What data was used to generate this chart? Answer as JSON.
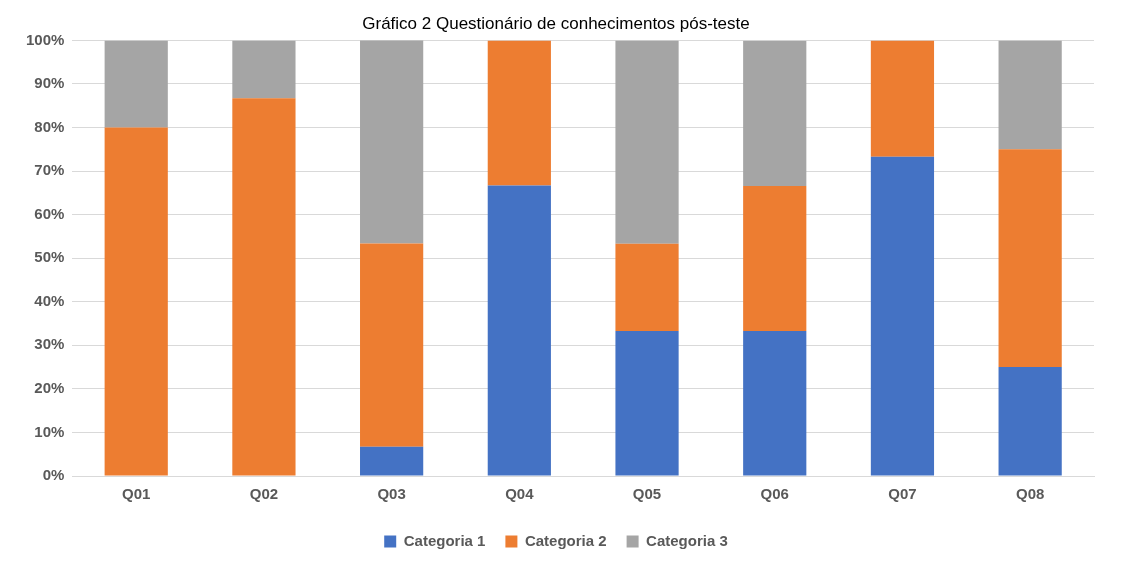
{
  "chart_data": {
    "type": "bar",
    "stacked": true,
    "title": "Gráfico 2 Questionário de conhecimentos pós-teste",
    "categories": [
      "Q01",
      "Q02",
      "Q03",
      "Q04",
      "Q05",
      "Q06",
      "Q07",
      "Q08"
    ],
    "series": [
      {
        "name": "Categoria 1",
        "color": "#4472c4",
        "values": [
          0,
          0,
          6.7,
          66.7,
          33.3,
          33.3,
          73.3,
          25
        ]
      },
      {
        "name": "Categoria 2",
        "color": "#ed7d31",
        "values": [
          80,
          86.7,
          46.7,
          33.3,
          20,
          33.3,
          26.7,
          50
        ]
      },
      {
        "name": "Categoria 3",
        "color": "#a5a5a5",
        "values": [
          20,
          13.3,
          46.7,
          0,
          46.7,
          33.3,
          0,
          25
        ]
      }
    ],
    "ylim": [
      0,
      100
    ],
    "yticks": [
      {
        "value": 0,
        "label": "0%"
      },
      {
        "value": 10,
        "label": "10%"
      },
      {
        "value": 20,
        "label": "20%"
      },
      {
        "value": 30,
        "label": "30%"
      },
      {
        "value": 40,
        "label": "40%"
      },
      {
        "value": 50,
        "label": "50%"
      },
      {
        "value": 60,
        "label": "60%"
      },
      {
        "value": 70,
        "label": "70%"
      },
      {
        "value": 80,
        "label": "80%"
      },
      {
        "value": 90,
        "label": "90%"
      },
      {
        "value": 100,
        "label": "100%"
      }
    ],
    "grid": "y",
    "legend": "bottom"
  }
}
